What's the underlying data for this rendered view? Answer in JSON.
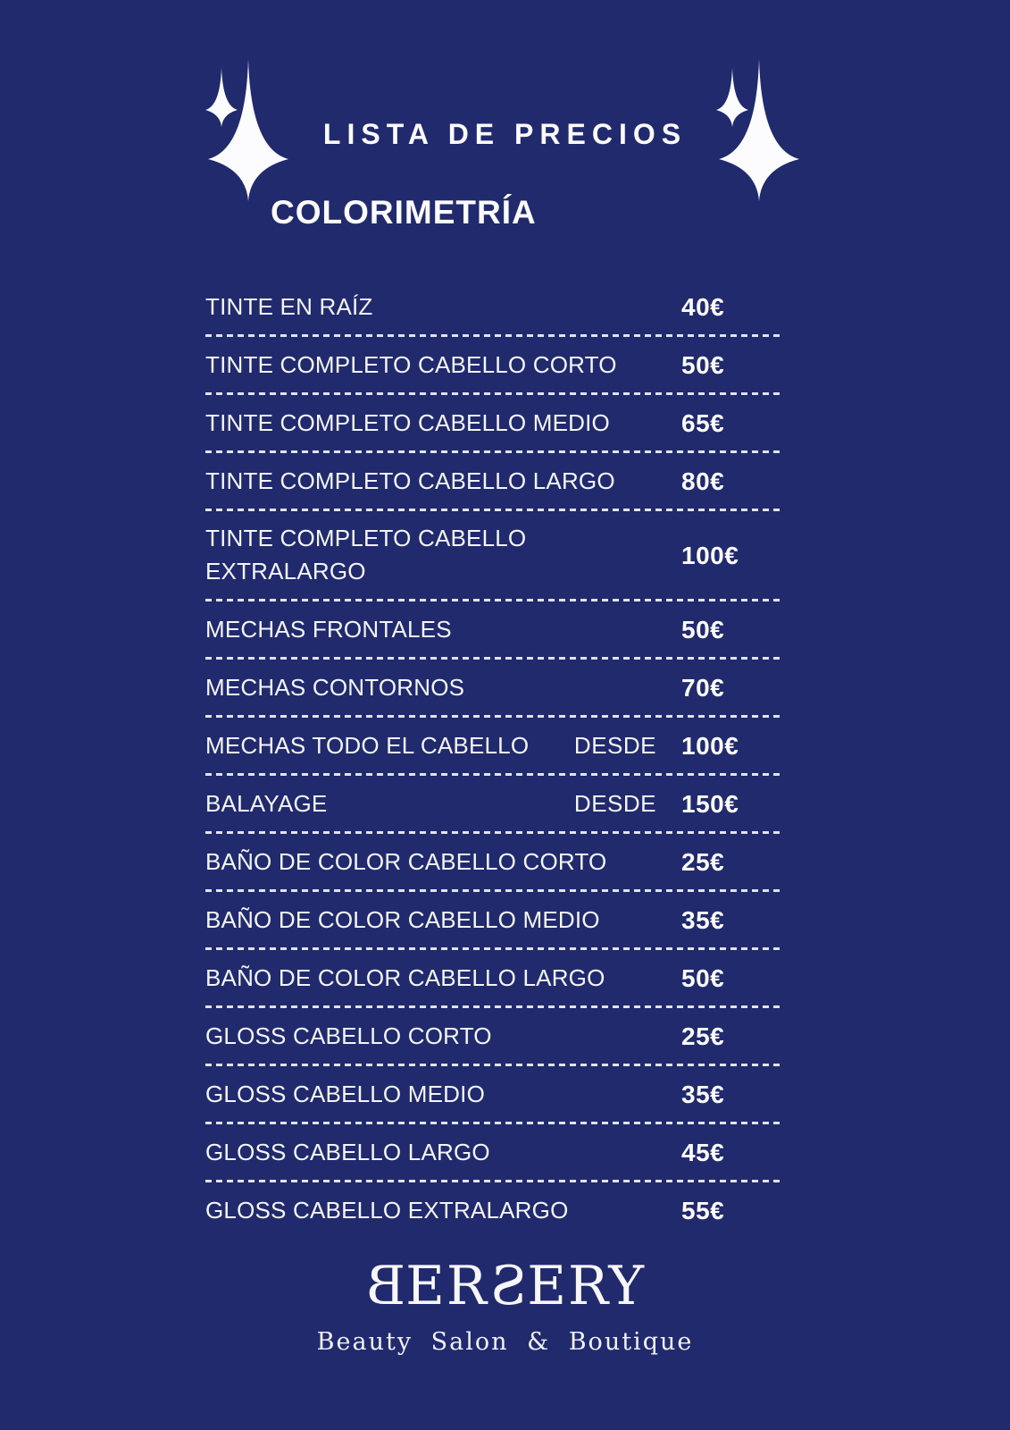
{
  "page": {
    "title": "LISTA DE PRECIOS",
    "section": "COLORIMETRÍA"
  },
  "menu": {
    "items": [
      {
        "label": "TINTE EN RAÍZ",
        "qualifier": "",
        "price": "40€"
      },
      {
        "label": "TINTE COMPLETO CABELLO CORTO",
        "qualifier": "",
        "price": "50€"
      },
      {
        "label": "TINTE COMPLETO CABELLO MEDIO",
        "qualifier": "",
        "price": "65€"
      },
      {
        "label": "TINTE COMPLETO CABELLO LARGO",
        "qualifier": "",
        "price": "80€"
      },
      {
        "label": "TINTE COMPLETO CABELLO\nEXTRALARGO",
        "qualifier": "",
        "price": "100€"
      },
      {
        "label": "MECHAS FRONTALES",
        "qualifier": "",
        "price": "50€"
      },
      {
        "label": "MECHAS CONTORNOS",
        "qualifier": "",
        "price": "70€"
      },
      {
        "label": "MECHAS TODO EL CABELLO",
        "qualifier": "DESDE",
        "price": "100€"
      },
      {
        "label": "BALAYAGE",
        "qualifier": "DESDE",
        "price": "150€"
      },
      {
        "label": "BAÑO DE COLOR CABELLO CORTO",
        "qualifier": "",
        "price": "25€"
      },
      {
        "label": "BAÑO DE COLOR CABELLO MEDIO",
        "qualifier": "",
        "price": "35€"
      },
      {
        "label": "BAÑO DE COLOR CABELLO LARGO",
        "qualifier": "",
        "price": "50€"
      },
      {
        "label": "GLOSS CABELLO CORTO",
        "qualifier": "",
        "price": "25€"
      },
      {
        "label": "GLOSS CABELLO MEDIO",
        "qualifier": "",
        "price": "35€"
      },
      {
        "label": "GLOSS CABELLO LARGO",
        "qualifier": "",
        "price": "45€"
      },
      {
        "label": "GLOSS CABELLO EXTRALARGO",
        "qualifier": "",
        "price": "55€"
      }
    ]
  },
  "footer": {
    "brand_name": "BERSERY",
    "brand_segments": [
      {
        "text": "B",
        "mirrored": true
      },
      {
        "text": "ER",
        "mirrored": false
      },
      {
        "text": "S",
        "mirrored": true
      },
      {
        "text": "ERY",
        "mirrored": false
      }
    ],
    "tagline": "Beauty Salon & Boutique"
  },
  "icons": {
    "left": "sparkle-icon",
    "right": "sparkle-icon"
  },
  "colors": {
    "background": "#212a6d",
    "text": "#f4f5f9",
    "divider": "#f1f3fa"
  }
}
